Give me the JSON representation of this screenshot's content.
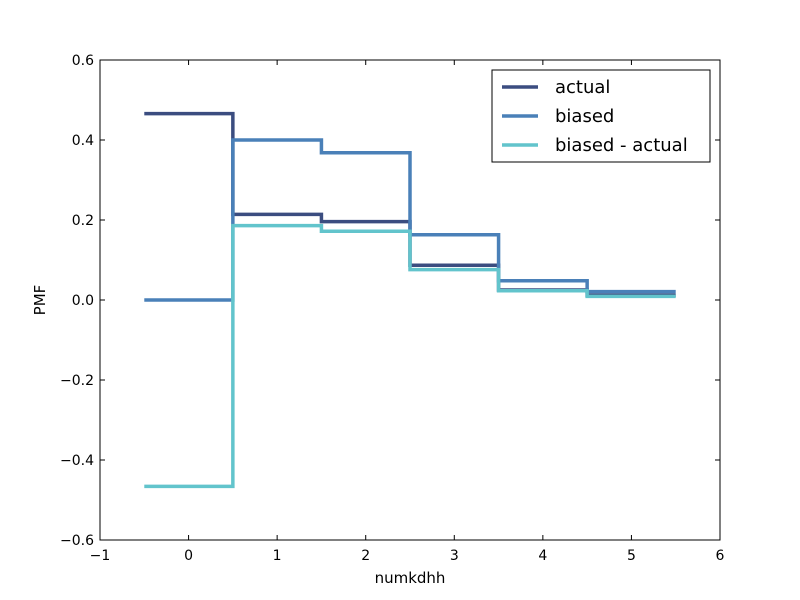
{
  "chart_data": {
    "type": "line",
    "step": "mid",
    "xlabel": "numkdhh",
    "ylabel": "PMF",
    "xlim": [
      -1,
      6
    ],
    "ylim": [
      -0.6,
      0.6
    ],
    "xticks": [
      -1,
      0,
      1,
      2,
      3,
      4,
      5,
      6
    ],
    "xtick_labels": [
      "−1",
      "0",
      "1",
      "2",
      "3",
      "4",
      "5",
      "6"
    ],
    "yticks": [
      -0.6,
      -0.4,
      -0.2,
      0.0,
      0.2,
      0.4,
      0.6
    ],
    "ytick_labels": [
      "−0.6",
      "−0.4",
      "−0.2",
      "0.0",
      "0.2",
      "0.4",
      "0.6"
    ],
    "grid": false,
    "legend_position": "top-right",
    "x": [
      0,
      1,
      2,
      3,
      4,
      5
    ],
    "series": [
      {
        "name": "actual",
        "color": "#3b4d80",
        "values": [
          0.466,
          0.214,
          0.196,
          0.087,
          0.025,
          0.012
        ]
      },
      {
        "name": "biased",
        "color": "#4a80b8",
        "values": [
          0.0,
          0.4,
          0.368,
          0.163,
          0.048,
          0.021
        ]
      },
      {
        "name": "biased - actual",
        "color": "#62c4cc",
        "values": [
          -0.466,
          0.186,
          0.172,
          0.076,
          0.023,
          0.009
        ]
      }
    ]
  }
}
